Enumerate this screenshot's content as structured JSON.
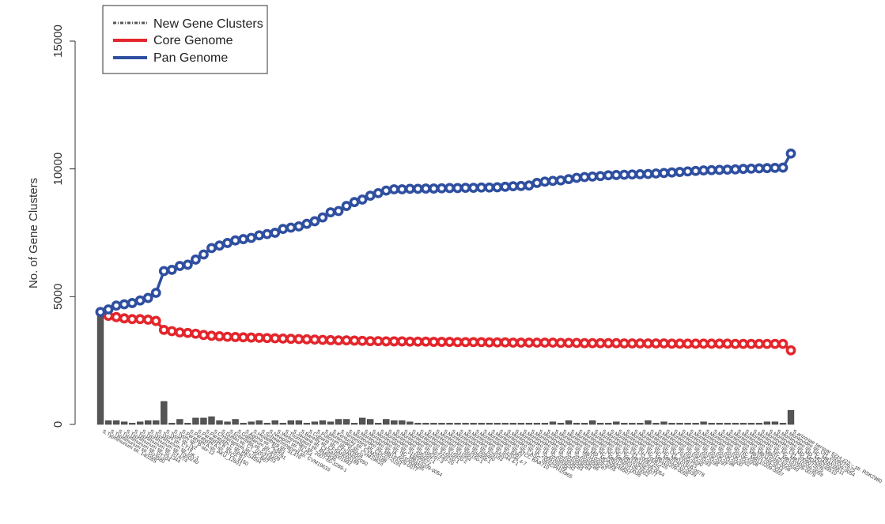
{
  "chart_data": {
    "type": "bar+line",
    "ylabel": "No. of Gene Clusters",
    "ylim": [
      0,
      15000
    ],
    "yticks": [
      0,
      5000,
      10000,
      15000
    ],
    "legend_position": "top-left",
    "legend": [
      {
        "label": "New Gene Clusters",
        "color": "#555555",
        "style": "dashed-bar"
      },
      {
        "label": "Core Genome",
        "color": "#e3262c",
        "style": "line"
      },
      {
        "label": "Pan Genome",
        "color": "#2f4fa0",
        "style": "line"
      }
    ],
    "categories": [
      "S.Typhimurium str. 14028S",
      "S.Typhimurium str. D23580",
      "S.Typhimurium str. DT104",
      "S.Typhimurium str. SL1344",
      "S.Typhimurium str. ST4/74",
      "S.Typhimurium str. T000240",
      "S.Typhimurium str. UK-1",
      "S.Typhi str. CT18",
      "S.Typhi str. Ty2",
      "S.Typhi str. P-stx-12",
      "S.Paratyphi A str. AKU_12601",
      "S.Paratyphi A str. ATCC 9150",
      "S.Paratyphi B str. SPB7",
      "S.Paratyphi C str. RKS4594",
      "S.Choleraesuis str. SC-B67",
      "S.Dublin str. CT_02021853",
      "S.Enteritidis str. P125109",
      "S.Gallinarum str. 287/91",
      "S.Agona str. SL483",
      "S.Heidelberg str. SL476",
      "S.Schwarzengrund str. CVM19633",
      "S.Newport str. SL254",
      "S.Weltevreden str. 2007-60-3289-1",
      "S.Thompson str. RM6836",
      "S.Javiana str. CFSAN001992",
      "S.Bareilly str. CFSAN000189",
      "S.Cubana str. CFSAN002050",
      "S.Pullorum str. S06004",
      "S.Montevideo str. CVM19633",
      "S.Kentucky str. CVM29188",
      "S.Tennessee str. CDC07-0191",
      "S.Montevideo str. MB101509-0077",
      "S.Montevideo str. IA_2010008285",
      "S.Montevideo str. NC_MB110209-0054",
      "S.Montevideo str. 315996572",
      "S.Montevideo str. 495297-1",
      "S.Montevideo str. 495297-3",
      "S.Montevideo str. 507440-20",
      "S.Montevideo str. 515920-1",
      "S.Montevideo str. 515920-2",
      "S.Montevideo str. 531954",
      "S.Montevideo str. 556150-1",
      "S.Montevideo str. 609458-1",
      "S.Montevideo str. 609460",
      "S.Montevideo str. 629163",
      "S.Montevideo str. 642044 4-1",
      "S.Montevideo str. 642046 4-7",
      "S.Montevideo str. 8387",
      "S.Montevideo str. ATCC BAA710",
      "S.Montevideo str. CASC_09SCPH15965",
      "S.Montevideo str. IA_2009159199",
      "S.Montevideo str. IA_2010008282",
      "S.Montevideo str. IA_2010008283",
      "S.Montevideo str. IA_2010008284",
      "S.Montevideo str. IA_2010008286",
      "S.Montevideo str. IA_2010008287",
      "S.Montevideo str. MB110209-0055",
      "S.Montevideo str. MD_MDA09249507",
      "S.Montevideo str. NC_MB012510-0038",
      "S.Montevideo str. NC_MB060109-0052",
      "S.Montevideo str. NC_MB101509-0077",
      "S.Montevideo str. NC_MB110209-0054",
      "S.Montevideo str. OH_20087225",
      "S.Montevideo str. OH_20087226",
      "S.Montevideo str. NC_MB110209-0055",
      "S.Montevideo str. NC_MB012510-0039",
      "S.Montevideo str. NC_MB101509-0078",
      "S.Montevideo str. OH_2008723",
      "S.Montevideo str. 2010K-0290",
      "S.Montevideo str. 2010K-0293",
      "S.Montevideo str. 2010K-0295",
      "S.Montevideo str. 2010K-0297",
      "S.Montevideo str. 2010K-0298",
      "S.Montevideo str. 2010K-0300",
      "S.Montevideo str. 2010K-0302",
      "S.Montevideo str. 2010K-0308",
      "S.Montevideo str. NC_MB110209-0057",
      "S.Montevideo str. MB101709-0044",
      "S.Montevideo str. MB110209-0058",
      "S.Montevideo str. MB012510-0040",
      "S.Montevideo str. NC_MB101509-0079",
      "S.Montevideo str. NC_MB110209-0059",
      "S.Montevideo str. OH_2009072675",
      "S.Montevideo str. MD_MDA09249510",
      "S.Montevideo str. MD_MDA09249511",
      "S.Montevideo str. NC_MB110209-0054",
      "S.Montevideo str. OH_2009072675",
      "S.arizonae serovar 62z4,z23:-- str. RSK2980"
    ],
    "series": [
      {
        "name": "New Gene Clusters",
        "values": [
          4400,
          150,
          150,
          100,
          50,
          100,
          150,
          150,
          900,
          50,
          200,
          50,
          250,
          250,
          300,
          150,
          100,
          200,
          50,
          100,
          150,
          50,
          150,
          50,
          150,
          150,
          50,
          100,
          150,
          100,
          200,
          200,
          50,
          250,
          200,
          50,
          200,
          150,
          150,
          100,
          50,
          50,
          50,
          50,
          50,
          50,
          50,
          50,
          50,
          50,
          50,
          50,
          50,
          50,
          50,
          50,
          50,
          100,
          50,
          150,
          50,
          50,
          150,
          50,
          50,
          100,
          50,
          50,
          50,
          150,
          50,
          100,
          50,
          50,
          50,
          50,
          100,
          50,
          50,
          50,
          50,
          50,
          50,
          50,
          100,
          100,
          50,
          550
        ]
      },
      {
        "name": "Core Genome",
        "values": [
          4400,
          4250,
          4200,
          4150,
          4120,
          4120,
          4100,
          4050,
          3700,
          3650,
          3600,
          3580,
          3550,
          3500,
          3470,
          3450,
          3430,
          3420,
          3410,
          3400,
          3390,
          3380,
          3370,
          3360,
          3350,
          3340,
          3330,
          3320,
          3310,
          3300,
          3290,
          3290,
          3280,
          3270,
          3260,
          3260,
          3250,
          3250,
          3250,
          3240,
          3240,
          3240,
          3230,
          3230,
          3230,
          3220,
          3220,
          3220,
          3220,
          3210,
          3210,
          3210,
          3200,
          3200,
          3200,
          3200,
          3200,
          3200,
          3190,
          3190,
          3190,
          3180,
          3180,
          3180,
          3180,
          3180,
          3170,
          3170,
          3170,
          3170,
          3170,
          3170,
          3160,
          3160,
          3160,
          3160,
          3160,
          3160,
          3160,
          3160,
          3150,
          3150,
          3150,
          3150,
          3150,
          3150,
          3150,
          2900
        ]
      },
      {
        "name": "Pan Genome",
        "values": [
          4400,
          4500,
          4650,
          4700,
          4750,
          4850,
          4950,
          5150,
          6000,
          6050,
          6200,
          6250,
          6450,
          6650,
          6900,
          7000,
          7100,
          7200,
          7250,
          7300,
          7400,
          7450,
          7500,
          7650,
          7700,
          7750,
          7850,
          7950,
          8100,
          8300,
          8350,
          8550,
          8700,
          8800,
          8950,
          9050,
          9150,
          9200,
          9200,
          9220,
          9220,
          9230,
          9230,
          9240,
          9250,
          9250,
          9260,
          9260,
          9270,
          9270,
          9280,
          9300,
          9320,
          9330,
          9350,
          9450,
          9500,
          9530,
          9550,
          9600,
          9650,
          9680,
          9700,
          9720,
          9750,
          9760,
          9770,
          9780,
          9790,
          9800,
          9820,
          9840,
          9860,
          9880,
          9900,
          9920,
          9940,
          9950,
          9960,
          9970,
          9980,
          10000,
          10010,
          10020,
          10030,
          10040,
          10050,
          10600
        ]
      }
    ]
  }
}
